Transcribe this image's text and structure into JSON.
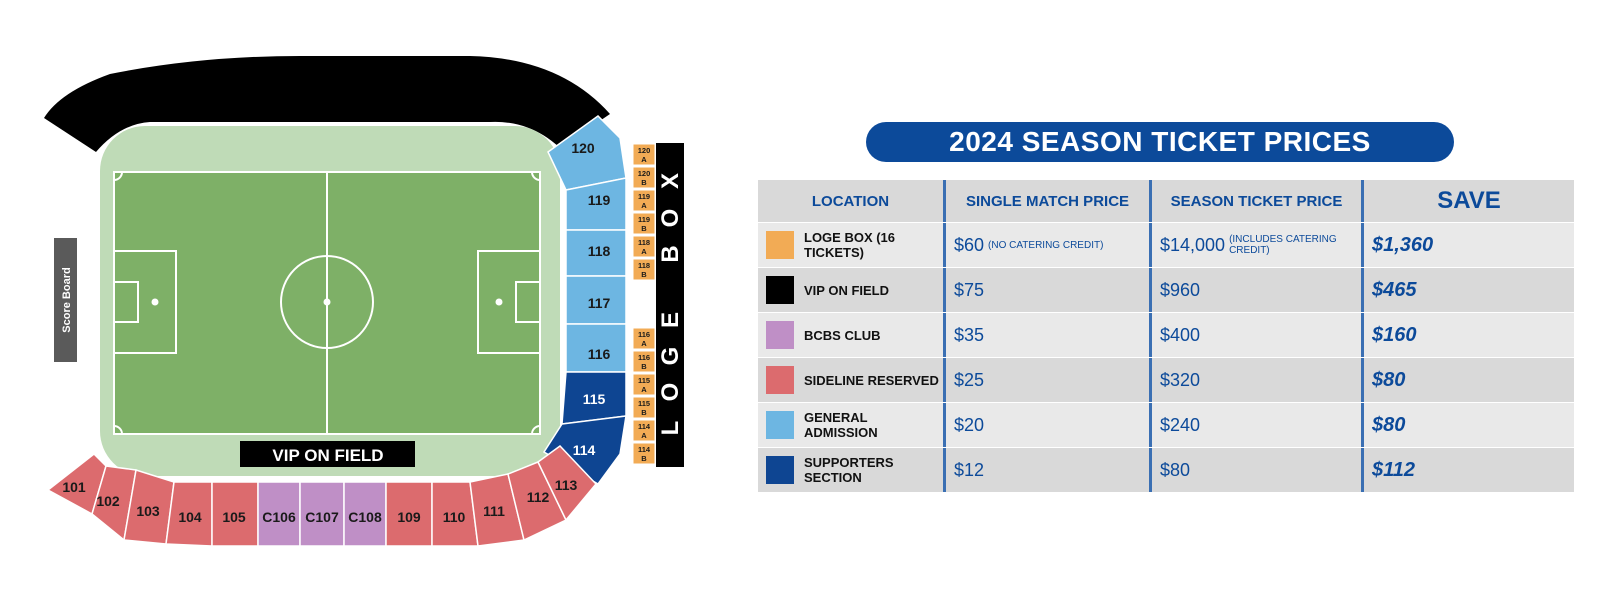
{
  "stadium": {
    "scoreboard_label": "Score Board",
    "vip_field_label": "VIP ON FIELD",
    "loge_box_letters": [
      "X",
      "O",
      "B",
      "",
      "E",
      "G",
      "O",
      "L"
    ],
    "loge_boxes": [
      {
        "num": "120",
        "sub": "A"
      },
      {
        "num": "120",
        "sub": "B"
      },
      {
        "num": "119",
        "sub": "A"
      },
      {
        "num": "119",
        "sub": "B"
      },
      {
        "num": "118",
        "sub": "A"
      },
      {
        "num": "118",
        "sub": "B"
      },
      {
        "num": "116",
        "sub": "A"
      },
      {
        "num": "116",
        "sub": "B"
      },
      {
        "num": "115",
        "sub": "A"
      },
      {
        "num": "115",
        "sub": "B"
      },
      {
        "num": "114",
        "sub": "A"
      },
      {
        "num": "114",
        "sub": "B"
      }
    ],
    "east_sections": [
      "120",
      "119",
      "118",
      "117",
      "116",
      "115",
      "114"
    ],
    "south_sections": [
      "101",
      "102",
      "103",
      "104",
      "105",
      "C106",
      "C107",
      "C108",
      "109",
      "110",
      "111",
      "112",
      "113"
    ],
    "colors": {
      "loge": "#f2ab55",
      "vip": "#000000",
      "club": "#bf8fc6",
      "sideline": "#dc6b6e",
      "general": "#6db6e2",
      "supporters": "#0e4592",
      "pitch": "#7eb067",
      "apron": "#bfdbb7"
    }
  },
  "prices": {
    "title": "2024 SEASON TICKET PRICES",
    "headers": {
      "location": "LOCATION",
      "single": "SINGLE MATCH PRICE",
      "season": "SEASON TICKET PRICE",
      "save": "SAVE"
    },
    "rows": [
      {
        "color": "#f2ab55",
        "location": "LOGE BOX (16 TICKETS)",
        "single": "$60",
        "single_note": "(NO CATERING CREDIT)",
        "season": "$14,000",
        "season_note": "(INCLUDES CATERING CREDIT)",
        "save": "$1,360"
      },
      {
        "color": "#000000",
        "location": "VIP ON FIELD",
        "single": "$75",
        "single_note": "",
        "season": "$960",
        "season_note": "",
        "save": "$465"
      },
      {
        "color": "#bf8fc6",
        "location": "BCBS CLUB",
        "single": "$35",
        "single_note": "",
        "season": "$400",
        "season_note": "",
        "save": "$160"
      },
      {
        "color": "#dc6b6e",
        "location": "SIDELINE RESERVED",
        "single": "$25",
        "single_note": "",
        "season": "$320",
        "season_note": "",
        "save": "$80"
      },
      {
        "color": "#6db6e2",
        "location": "GENERAL ADMISSION",
        "single": "$20",
        "single_note": "",
        "season": "$240",
        "season_note": "",
        "save": "$80"
      },
      {
        "color": "#0e4592",
        "location": "SUPPORTERS SECTION",
        "single": "$12",
        "single_note": "",
        "season": "$80",
        "season_note": "",
        "save": "$112"
      }
    ]
  }
}
